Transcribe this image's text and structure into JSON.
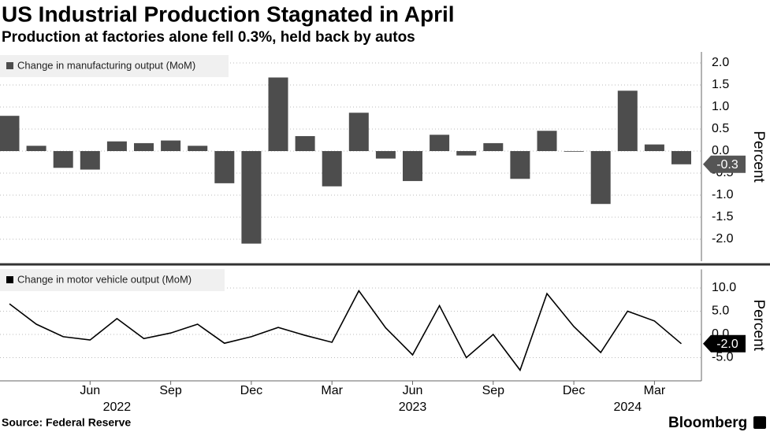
{
  "title": "US Industrial Production Stagnated in April",
  "subtitle": "Production at factories alone fell 0.3%, held back by autos",
  "source": "Source: Federal Reserve",
  "brand": "Bloomberg",
  "x_axis": {
    "x": [
      "2022-03",
      "2022-04",
      "2022-05",
      "2022-06",
      "2022-07",
      "2022-08",
      "2022-09",
      "2022-10",
      "2022-11",
      "2022-12",
      "2023-01",
      "2023-02",
      "2023-03",
      "2023-04",
      "2023-05",
      "2023-06",
      "2023-07",
      "2023-08",
      "2023-09",
      "2023-10",
      "2023-11",
      "2023-12",
      "2024-01",
      "2024-02",
      "2024-03",
      "2024-04"
    ],
    "xticks": [
      {
        "value": "2022-06",
        "label": "Jun"
      },
      {
        "value": "2022-09",
        "label": "Sep"
      },
      {
        "value": "2022-12",
        "label": "Dec"
      },
      {
        "value": "2023-03",
        "label": "Mar"
      },
      {
        "value": "2023-06",
        "label": "Jun"
      },
      {
        "value": "2023-09",
        "label": "Sep"
      },
      {
        "value": "2023-12",
        "label": "Dec"
      },
      {
        "value": "2024-03",
        "label": "Mar"
      }
    ],
    "year_labels": [
      {
        "value": "2022-07",
        "label": "2022"
      },
      {
        "value": "2023-06",
        "label": "2023"
      },
      {
        "value": "2024-02",
        "label": "2024"
      }
    ]
  },
  "chart_data": [
    {
      "type": "bar",
      "ylabel": "Percent",
      "grid": true,
      "series": [
        {
          "name": "Change in manufacturing output (MoM)",
          "color": "#4d4d4d",
          "values": [
            0.8,
            0.12,
            -0.38,
            -0.42,
            0.22,
            0.18,
            0.24,
            0.12,
            -0.73,
            -2.1,
            1.67,
            0.34,
            -0.8,
            0.87,
            -0.17,
            -0.68,
            0.37,
            -0.1,
            0.18,
            -0.63,
            0.46,
            0.0,
            -1.2,
            1.37,
            0.15,
            -0.3
          ],
          "last_label": "-0.3"
        }
      ],
      "ylim": [
        -2.5,
        2.25
      ],
      "yticks": [
        {
          "value": 2,
          "label": "2.0"
        },
        {
          "value": 1.5,
          "label": "1.5"
        },
        {
          "value": 1,
          "label": "1.0"
        },
        {
          "value": 0.5,
          "label": "0.5"
        },
        {
          "value": 0,
          "label": "0.0"
        },
        {
          "value": -0.5,
          "label": "-0.5"
        },
        {
          "value": -1,
          "label": "-1.0"
        },
        {
          "value": -1.5,
          "label": "-1.5"
        },
        {
          "value": -2,
          "label": "-2.0"
        }
      ]
    },
    {
      "type": "line",
      "ylabel": "Percent",
      "grid": true,
      "series": [
        {
          "name": "Change in motor vehicle output (MoM)",
          "color": "#000000",
          "values": [
            6.6,
            2.2,
            -0.5,
            -1.2,
            3.4,
            -0.9,
            0.3,
            2.2,
            -1.9,
            -0.5,
            1.5,
            -0.2,
            -1.7,
            9.4,
            1.4,
            -4.4,
            6.2,
            -5.0,
            0.0,
            -7.7,
            8.8,
            1.7,
            -3.9,
            5.0,
            2.9,
            -2.0
          ],
          "last_label": "-2.0"
        }
      ],
      "ylim": [
        -10,
        14
      ],
      "yticks": [
        {
          "value": 10,
          "label": "10.0"
        },
        {
          "value": 5,
          "label": "5.0"
        },
        {
          "value": 0,
          "label": "0.0"
        },
        {
          "value": -5,
          "label": "-5.0"
        }
      ]
    }
  ]
}
